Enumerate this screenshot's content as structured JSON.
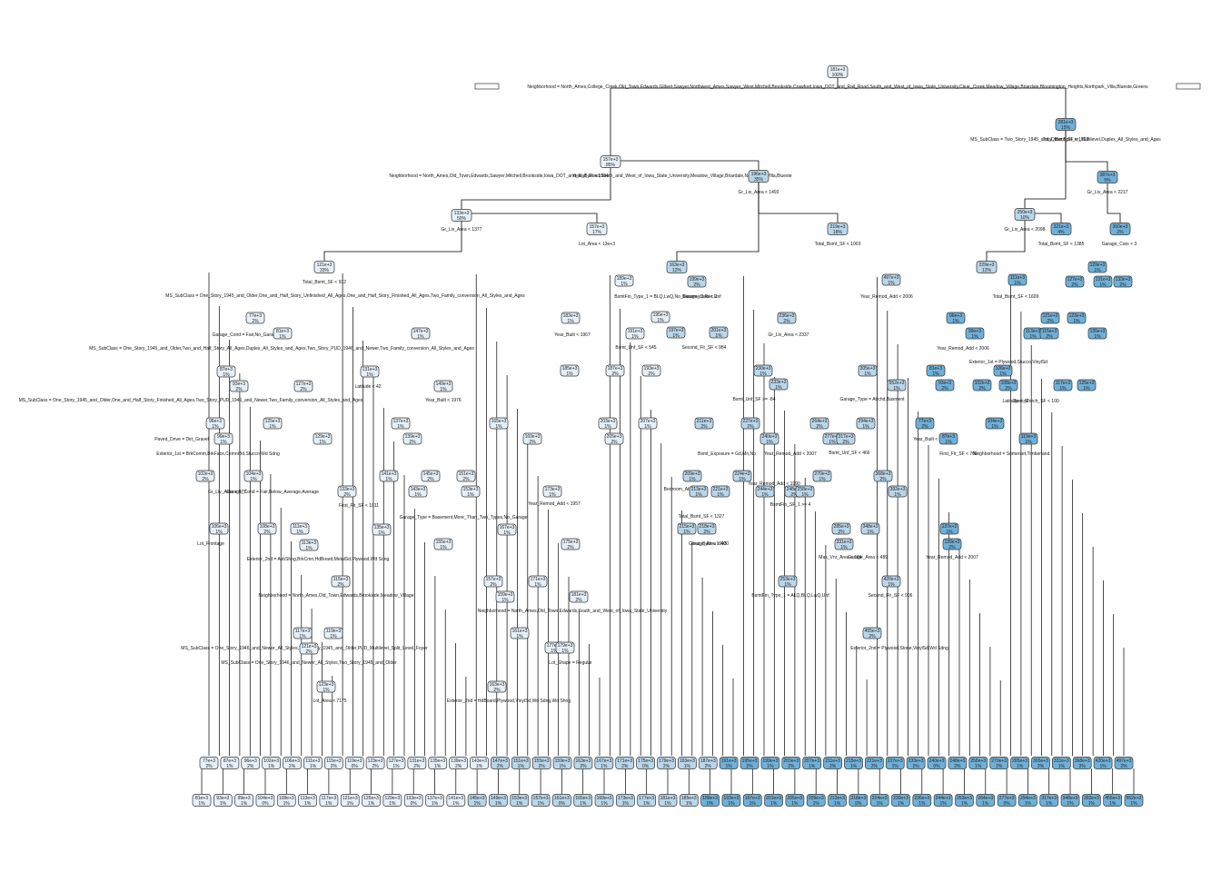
{
  "colors": {
    "light": "#e5eff8",
    "mid": "#b9d6ea",
    "dark": "#6fb0d8",
    "line": "#000000"
  },
  "root": {
    "value": "181e+3",
    "percent": "100%"
  },
  "legend": {
    "left": "—",
    "right": "—"
  },
  "root_split": "Neighborhood = North_Ames,College_Creek,Old_Town,Edwards,Gilbert,Sawyer,Northwest_Ames,Sawyer_West,Mitchell,Brookside,Crawford,Iowa_DOT_and_Rail_Road,South_and_West_of_Iowa_State_University,Clear_Creek,Meadow_Village,Briardale,Bloomington_Heights,Northpark_Villa,Blueste,Greens",
  "nodes": [
    {
      "id": "n1",
      "value": "157e+3",
      "percent": "85%",
      "shade": "light"
    },
    {
      "id": "n2",
      "value": "281e+3",
      "percent": "15%",
      "shade": "dark"
    },
    {
      "id": "n3",
      "value": "133e+3",
      "percent": "50%",
      "shade": "light"
    },
    {
      "id": "n4",
      "value": "196e+3",
      "percent": "35%",
      "shade": "mid"
    },
    {
      "id": "n5",
      "value": "250e+3",
      "percent": "10%",
      "shade": "mid"
    },
    {
      "id": "n6",
      "value": "387e+3",
      "percent": "5%",
      "shade": "dark"
    },
    {
      "id": "n7",
      "value": "121e+3",
      "percent": "33%",
      "shade": "light"
    },
    {
      "id": "n8",
      "value": "157e+3",
      "percent": "17%",
      "shade": "light"
    },
    {
      "id": "n9",
      "value": "163e+3",
      "percent": "12%",
      "shade": "mid"
    },
    {
      "id": "n10",
      "value": "219e+3",
      "percent": "18%",
      "shade": "mid"
    },
    {
      "id": "n11",
      "value": "229e+3",
      "percent": "12%",
      "shade": "mid"
    },
    {
      "id": "n12",
      "value": "321e+3",
      "percent": "4%",
      "shade": "dark"
    },
    {
      "id": "n13",
      "value": "350e+3",
      "percent": "2%",
      "shade": "dark"
    }
  ],
  "split_labels": [
    "Total_Bsmt_SF < 1722",
    "Neighborhood = North_Ames,Old_Town,Edwards,Sawyer,Mitchell,Brookside,Iowa_DOT_and_Rail_Road,South_and_West_of_Iowa_State_University,Meadow_Village,Briardale,Northpark_Villa,Blueste",
    "Gr_Liv_Area < 2217",
    "Gr_Liv_Area < 1493",
    "Gr_Liv_Area < 1377",
    "Gr_Liv_Area < 2098",
    "Total_Bsmt_SF < 1385",
    "Garage_Cars < 3",
    "Lot_Area < 13e+3",
    "Total_Bsmt_SF < 912",
    "Total_Bsmt_SF < 1003",
    "Total_Bsmt_SF < 1609",
    "Garage_Cars < 2",
    "MS_SubClass = One_Story_1945_and_Older,One_and_Half_Story_Unfinished_All_Ages,One_and_Half_Story_Finished_All_Ages,Two_Family_conversion_All_Styles_and_Ages",
    "Year_Remod_Add < 2006",
    "Year_Built < 1967",
    "Garage_Cond = Fair,No_Garage",
    "MS_SubClass = One_Story_1945_and_Older,Two_and_Half_Story_All_Ages,Duplex_All_Styles_and_Ages,Two_Story_PUD_1946_and_Newer,Two_Family_conversion_All_Styles_and_Ages",
    "Gr_Liv_Area < 2337",
    "Year_Remod_Add < 2006",
    "Latitude < 42",
    "Year_Built < 1976",
    "MS_SubClass = One_Story_1945_and_Older,One_and_Half_Story_Finished_All_Ages,Two_Story_PUD_1946_and_Newer,Two_Family_conversion_All_Styles_and_Ages",
    "Paved_Drive = Dirt_Gravel",
    "Exterior_1st = BrkComm,BrkFace,CemntBd,Stucco,Wd Sdng",
    "Gr_Liv_Area < 977",
    "Garage_Cond = Fair,Below_Average,Average",
    "Garage_Type = Basement,More_Than_Two_Types,No_Garage",
    "First_Flr_SF < 1011",
    "Year_Remod_Add < 1957",
    "Lot_Frontage",
    "Exterior_2nd = AsbShng,BrkCmn,HdBoard,MetalSd,Plywood,Wd Sdng",
    "Neighborhood = North_Ames,Old_Town,Edwards,Brookside,Meadow_Village",
    "BsmtFin_Type_1 = BLQ,LwQ,No_Basement,Rec,Unf",
    "Neighborhood = North_Ames,Old_Town,Edwards,South_and_West_of_Iowa_State_University",
    "MS_SubClass = One_Story_1946_and_Newer_All_Styles,Two_Story_1945_and_Older,PUD_Multilevel_Split_Level_Foyer",
    "MS_SubClass = One_Story_1946_and_Newer_All_Styles,Two_Story_1945_and_Older",
    "Lot_Area < 7175",
    "Exterior_2nd = HdBoard,Plywood,VinylSd,Wd Sdng,Wd Shng",
    "Lot_Shape = Regular",
    "BsmtFin_Type_1 = ALQ,BLQ,LwQ,Unf",
    "Second_Flr_SF < 906",
    "Exterior_2nd = Plywood,Stone,VinylSd,Wd Sdng",
    "Year_Remod_Add < 2007",
    "Neighborhood = Somerset,Timberland",
    "Open_Porch_SF < 100",
    "Exterior_1st = Plywood,Stucco,VinylSd",
    "Latitude < 42",
    "Year_Built < 1997",
    "First_Flr_SF < 706",
    "Max_Vnr_Area < 184",
    "Garage_Area < 489",
    "Garage_Area < 400",
    "Bsmt_Unf_SF < 466",
    "Year_Remod_Add < 2007",
    "Bsmt_Exposure = Gd,Mn,No",
    "Year_Remod_Add < 1990",
    "Total_Bsmt_SF < 1327",
    "BsmtFin_SF_1 >= 4",
    "Second_Flr_SF < 984",
    "Bsmt_Unf_SF < 545",
    "Year_Built < 1993",
    "Bedroom_AbvGr >= 2",
    "Bsmt_Unf_SF >= -84",
    "Garage_Type = Attchd,Basment",
    "MS_SubClass = Two_Story_1945_and_Older,Split_or_Multilevel,Duplex_All_Styles_and_Ages",
    "Year_Built < 1994"
  ],
  "leaves": [
    "77e+3",
    "81e+3",
    "87e+3",
    "93e+3",
    "96e+3",
    "99e+3",
    "102e+3",
    "104e+3",
    "106e+3",
    "108e+3",
    "111e+3",
    "113e+3",
    "115e+3",
    "117e+3",
    "119e+3",
    "121e+3",
    "123e+3",
    "125e+3",
    "127e+3",
    "129e+3",
    "131e+3",
    "133e+3",
    "135e+3",
    "137e+3",
    "139e+3",
    "141e+3",
    "143e+3",
    "145e+3",
    "147e+3",
    "149e+3",
    "151e+3",
    "153e+3",
    "155e+3",
    "157e+3",
    "159e+3",
    "161e+3",
    "163e+3",
    "165e+3",
    "167e+3",
    "169e+3",
    "171e+3",
    "173e+3",
    "175e+3",
    "177e+3",
    "179e+3",
    "181e+3",
    "183e+3",
    "185e+3",
    "187e+3",
    "189e+3",
    "191e+3",
    "193e+3",
    "195e+3",
    "197e+3",
    "199e+3",
    "201e+3",
    "203e+3",
    "205e+3",
    "207e+3",
    "209e+3",
    "211e+3",
    "213e+3",
    "215e+3",
    "218e+3",
    "221e+3",
    "224e+3",
    "227e+3",
    "230e+3",
    "233e+3",
    "236e+3",
    "240e+3",
    "244e+3",
    "248e+3",
    "253e+3",
    "258e+3",
    "264e+3",
    "270e+3",
    "277e+3",
    "285e+3",
    "294e+3",
    "305e+3",
    "317e+3",
    "331e+3",
    "348e+3",
    "368e+3",
    "392e+3",
    "420e+3",
    "455e+3",
    "497e+3",
    "552e+3"
  ]
}
